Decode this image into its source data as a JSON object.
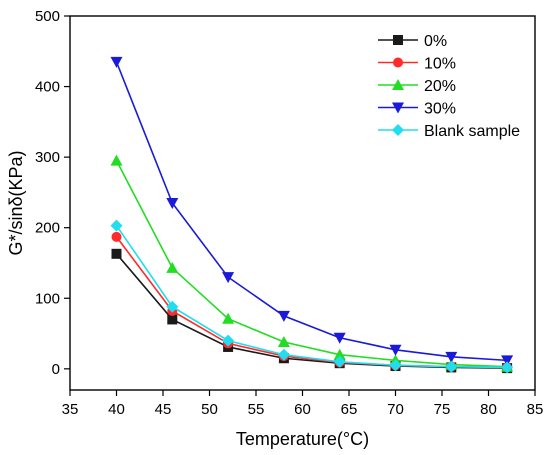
{
  "chart_data": {
    "type": "line",
    "title": "",
    "xlabel": "Temperature(°C)",
    "ylabel": "G*/sinδ(KPa)",
    "xlim": [
      35,
      85
    ],
    "ylim": [
      -30,
      500
    ],
    "xticks": [
      35,
      40,
      45,
      50,
      55,
      60,
      65,
      70,
      75,
      80,
      85
    ],
    "yticks": [
      0,
      100,
      200,
      300,
      400,
      500
    ],
    "grid": false,
    "legend_position": "top-right",
    "x": [
      40,
      46,
      52,
      58,
      64,
      70,
      76,
      82
    ],
    "series": [
      {
        "name": "0%",
        "color": "#1a1a1a",
        "marker": "square",
        "values": [
          163,
          70,
          31,
          15,
          8,
          4,
          2,
          1
        ]
      },
      {
        "name": "10%",
        "color": "#ff2a2a",
        "marker": "circle",
        "values": [
          187,
          82,
          36,
          18,
          9,
          5,
          3,
          2
        ]
      },
      {
        "name": "20%",
        "color": "#22dd22",
        "marker": "triangle-up",
        "values": [
          295,
          143,
          71,
          38,
          20,
          12,
          6,
          3
        ]
      },
      {
        "name": "30%",
        "color": "#1a1ad8",
        "marker": "triangle-down",
        "values": [
          435,
          235,
          130,
          75,
          44,
          27,
          17,
          12
        ]
      },
      {
        "name": "Blank sample",
        "color": "#22ddf0",
        "marker": "diamond",
        "values": [
          203,
          88,
          40,
          20,
          10,
          5,
          3,
          2
        ]
      }
    ]
  }
}
